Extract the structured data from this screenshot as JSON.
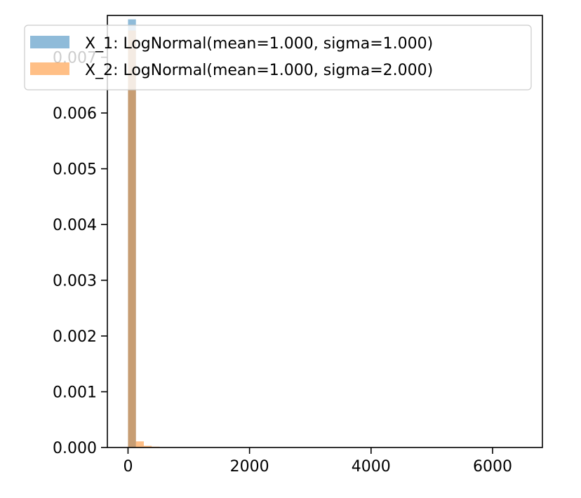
{
  "chart_data": {
    "type": "bar",
    "title": "",
    "xlabel": "",
    "ylabel": "",
    "xlim": [
      -340,
      6820
    ],
    "ylim": [
      0,
      0.00775
    ],
    "grid": false,
    "legend_position": "top-left",
    "x_ticks": [
      {
        "value": 0,
        "label": "0"
      },
      {
        "value": 2000,
        "label": "2000"
      },
      {
        "value": 4000,
        "label": "4000"
      },
      {
        "value": 6000,
        "label": "6000"
      }
    ],
    "y_ticks": [
      {
        "value": 0.0,
        "label": "0.000"
      },
      {
        "value": 0.001,
        "label": "0.001"
      },
      {
        "value": 0.002,
        "label": "0.002"
      },
      {
        "value": 0.003,
        "label": "0.003"
      },
      {
        "value": 0.004,
        "label": "0.004"
      },
      {
        "value": 0.005,
        "label": "0.005"
      },
      {
        "value": 0.006,
        "label": "0.006"
      },
      {
        "value": 0.007,
        "label": "0.007"
      }
    ],
    "series": [
      {
        "name": "X_1: LogNormal(mean=1.000, sigma=1.000)",
        "color": "#1f77b4",
        "opacity": 0.5,
        "bins": [
          {
            "x0": 0,
            "x1": 130,
            "density": 0.00768
          }
        ]
      },
      {
        "name": "X_2: LogNormal(mean=1.000, sigma=2.000)",
        "color": "#ff7f0e",
        "opacity": 0.5,
        "bins": [
          {
            "x0": 0,
            "x1": 130,
            "density": 0.00748
          },
          {
            "x0": 130,
            "x1": 260,
            "density": 0.00011
          },
          {
            "x0": 260,
            "x1": 390,
            "density": 3e-05
          },
          {
            "x0": 390,
            "x1": 520,
            "density": 1.5e-05
          }
        ]
      }
    ]
  }
}
